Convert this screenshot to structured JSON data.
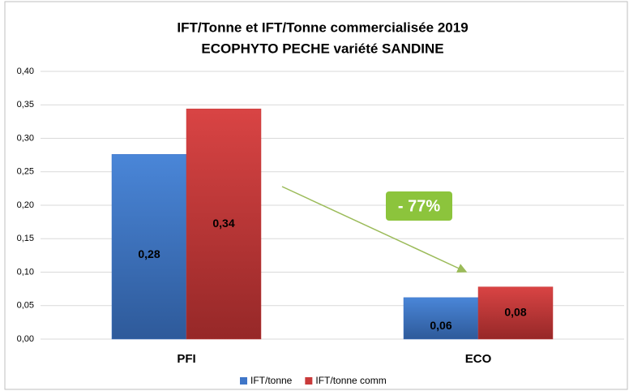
{
  "chart_data": {
    "type": "bar",
    "title": "IFT/Tonne et IFT/Tonne commercialisée 2019",
    "subtitle": "ECOPHYTO PECHE variété SANDINE",
    "categories": [
      "PFI",
      "ECO"
    ],
    "series": [
      {
        "name": "IFT/tonne",
        "color": "#3f76c8",
        "values": [
          0.276,
          0.062
        ],
        "value_labels": [
          "0,28",
          "0,06"
        ]
      },
      {
        "name": "IFT/tonne comm",
        "color": "#c93a3a",
        "values": [
          0.344,
          0.078
        ],
        "value_labels": [
          "0,34",
          "0,08"
        ]
      }
    ],
    "ylim": [
      0,
      0.4
    ],
    "yticks": [
      {
        "value": 0,
        "label": "0,00"
      },
      {
        "value": 0.05,
        "label": "0,05"
      },
      {
        "value": 0.1,
        "label": "0,10"
      },
      {
        "value": 0.15,
        "label": "0,15"
      },
      {
        "value": 0.2,
        "label": "0,20"
      },
      {
        "value": 0.25,
        "label": "0,25"
      },
      {
        "value": 0.3,
        "label": "0,30"
      },
      {
        "value": 0.35,
        "label": "0,35"
      },
      {
        "value": 0.4,
        "label": "0,40"
      }
    ],
    "grid": true,
    "legend": "bottom",
    "annotation": "- 77%"
  }
}
